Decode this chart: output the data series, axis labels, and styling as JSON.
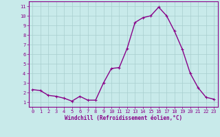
{
  "x": [
    0,
    1,
    2,
    3,
    4,
    5,
    6,
    7,
    8,
    9,
    10,
    11,
    12,
    13,
    14,
    15,
    16,
    17,
    18,
    19,
    20,
    21,
    22,
    23
  ],
  "y": [
    2.3,
    2.2,
    1.7,
    1.6,
    1.4,
    1.1,
    1.6,
    1.2,
    1.2,
    3.0,
    4.5,
    4.6,
    6.6,
    9.3,
    9.8,
    10.0,
    10.9,
    10.0,
    8.4,
    6.5,
    4.0,
    2.5,
    1.5,
    1.3
  ],
  "line_color": "#880088",
  "marker_color": "#880088",
  "bg_color": "#c8eaea",
  "grid_color": "#a8cece",
  "xlabel": "Windchill (Refroidissement éolien,°C)",
  "xlabel_color": "#880088",
  "tick_color": "#880088",
  "spine_color": "#880088",
  "ylim": [
    0.5,
    11.5
  ],
  "xlim": [
    -0.5,
    23.5
  ],
  "yticks": [
    1,
    2,
    3,
    4,
    5,
    6,
    7,
    8,
    9,
    10,
    11
  ],
  "xticks": [
    0,
    1,
    2,
    3,
    4,
    5,
    6,
    7,
    8,
    9,
    10,
    11,
    12,
    13,
    14,
    15,
    16,
    17,
    18,
    19,
    20,
    21,
    22,
    23
  ],
  "figsize": [
    3.2,
    2.0
  ],
  "dpi": 100,
  "tick_fontsize": 5,
  "xlabel_fontsize": 5.5,
  "marker_size": 2.5,
  "line_width": 1.0
}
